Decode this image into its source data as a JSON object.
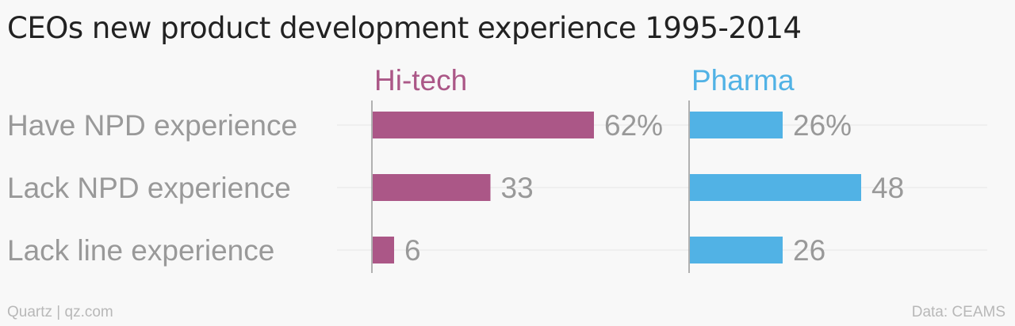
{
  "title": "CEOs new product development experience 1995-2014",
  "footer": {
    "credit": "Quartz | qz.com",
    "source": "Data: CEAMS"
  },
  "chart_data": {
    "type": "bar",
    "orientation": "horizontal",
    "categories": [
      "Have NPD experience",
      "Lack NPD experience",
      "Lack line experience"
    ],
    "series": [
      {
        "name": "Hi-tech",
        "color": "#ab5787",
        "values": [
          62,
          33,
          6
        ],
        "labels": [
          "62%",
          "33",
          "6"
        ]
      },
      {
        "name": "Pharma",
        "color": "#51b2e5",
        "values": [
          26,
          48,
          26
        ],
        "labels": [
          "26%",
          "48",
          "26"
        ]
      }
    ],
    "xlim": [
      0,
      100
    ],
    "grid": true,
    "legend": "panel titles above each panel"
  }
}
